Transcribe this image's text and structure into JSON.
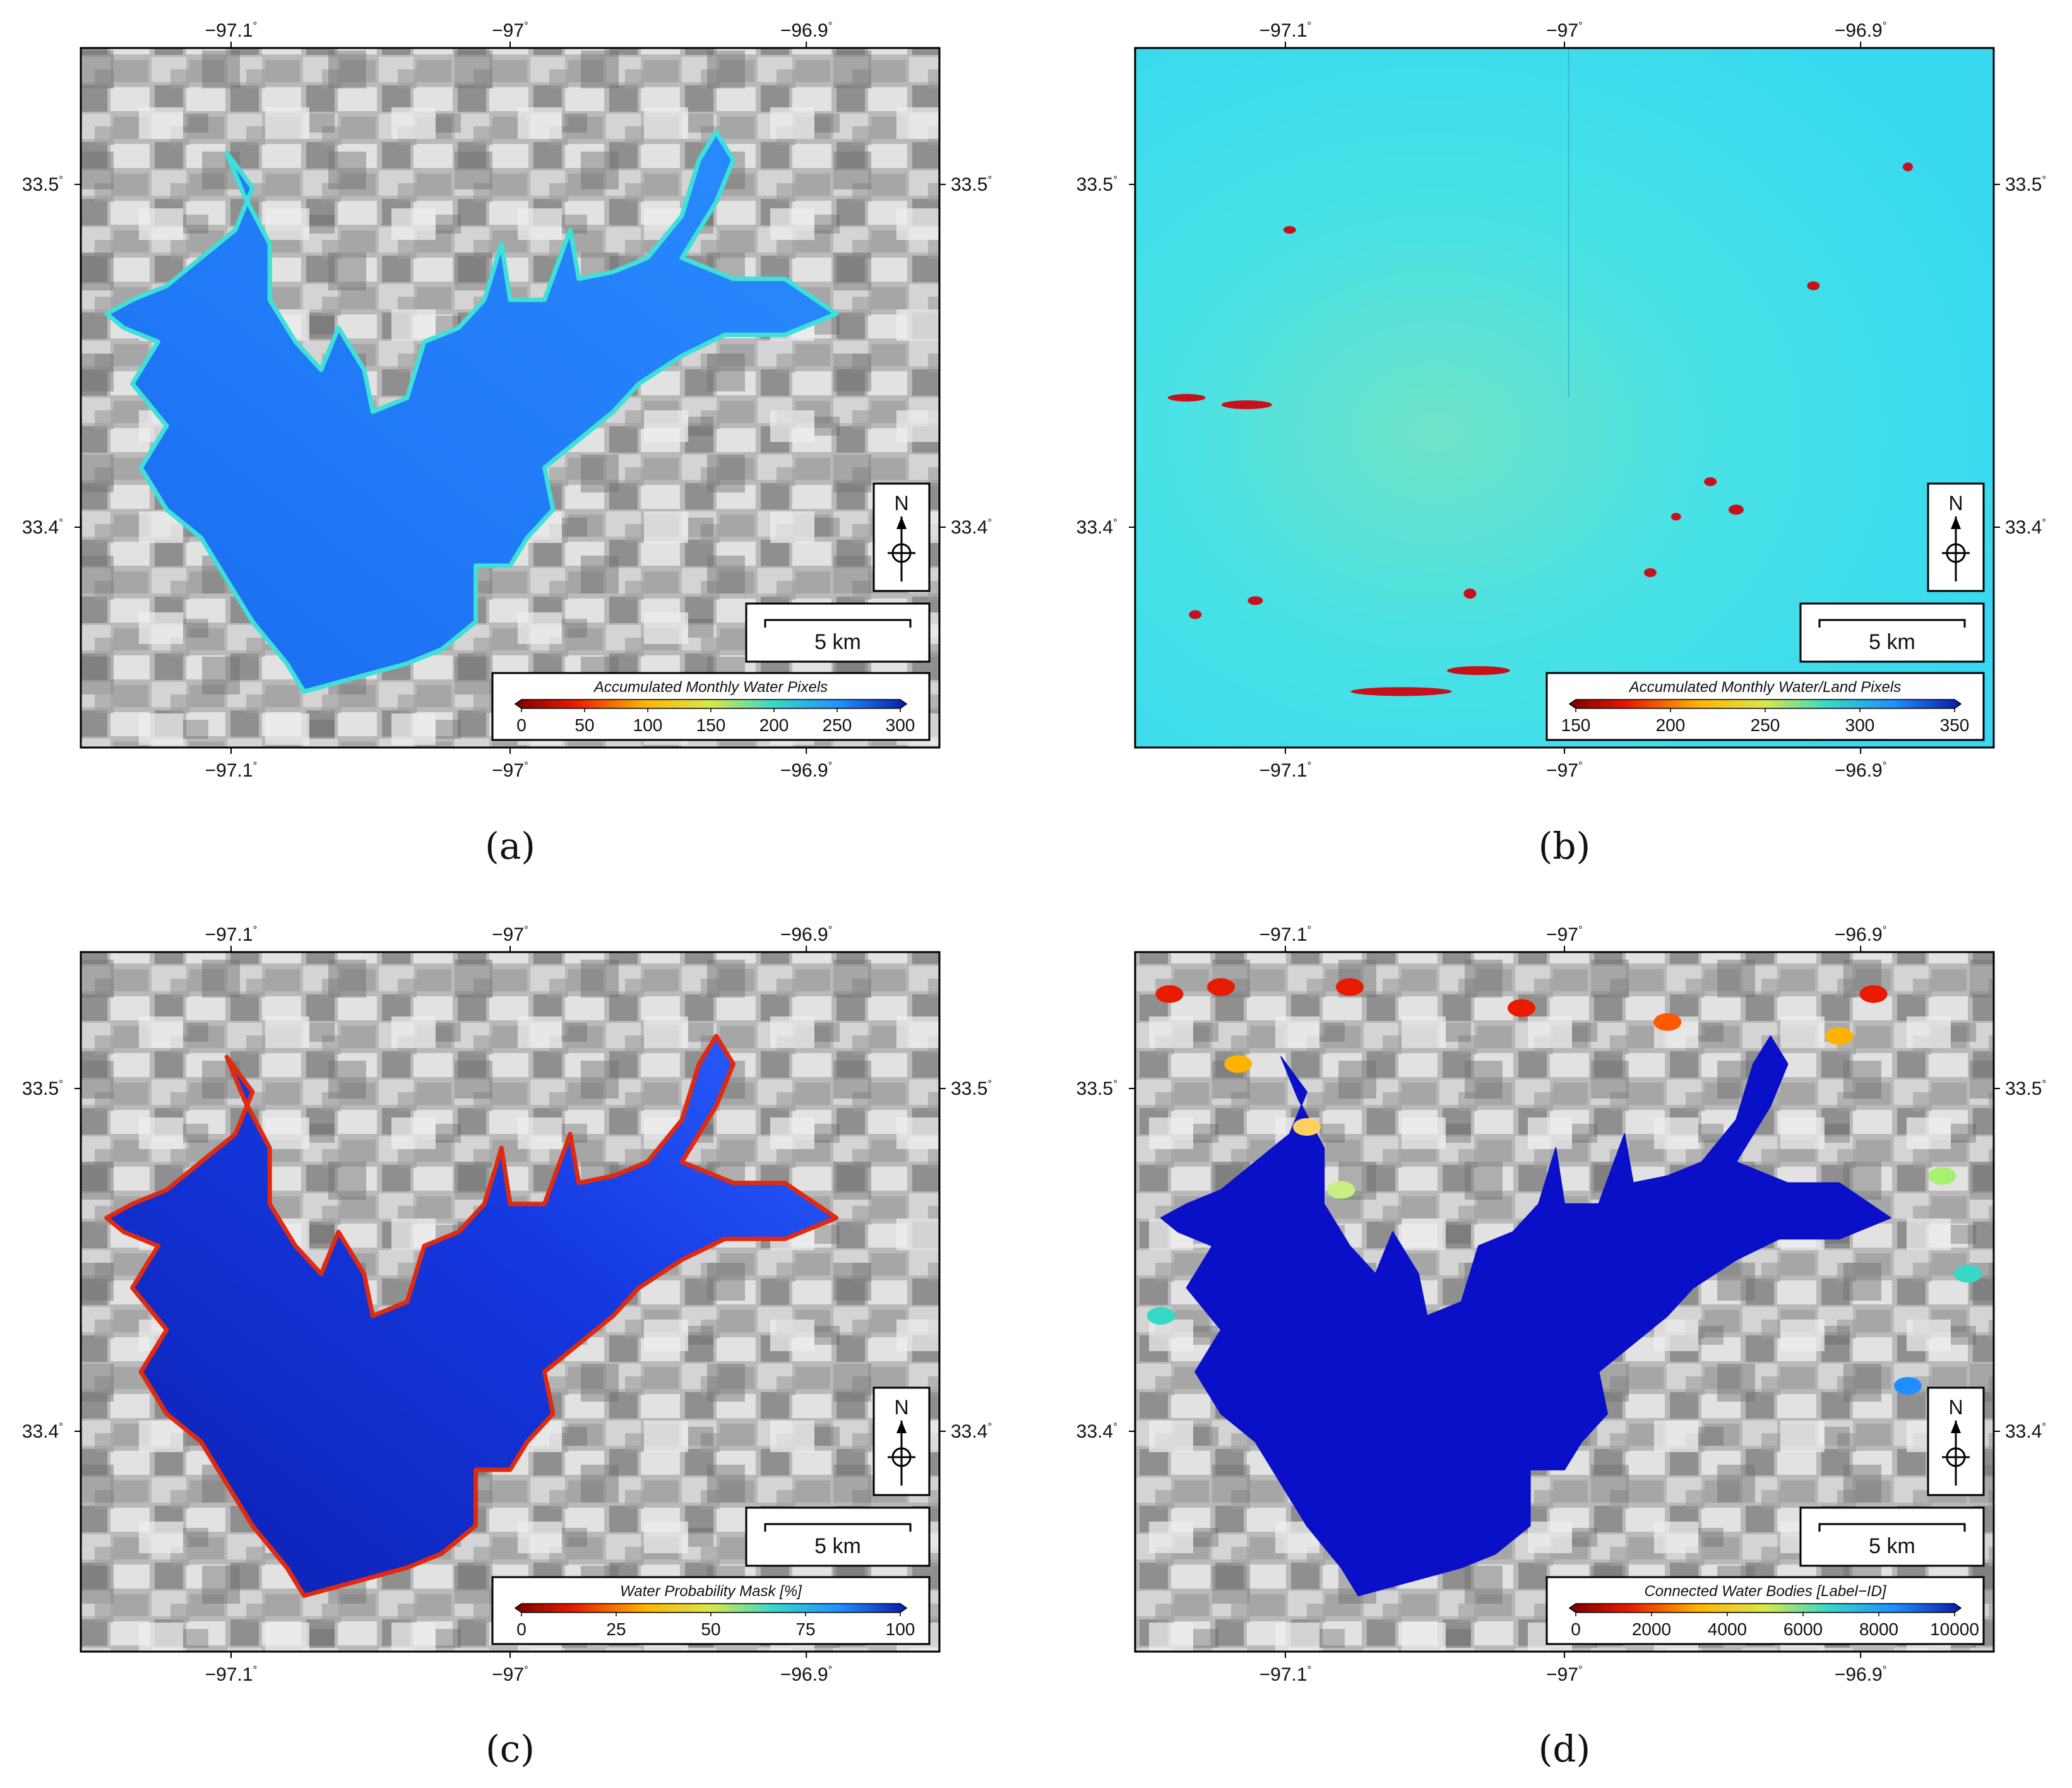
{
  "figure": {
    "panels": [
      {
        "id": "a",
        "label": "(a)",
        "map_type": "grayscale-background-with-water-overlay",
        "lon_labels": [
          "−97.1",
          "−97",
          "−96.9"
        ],
        "lat_labels": [
          "33.5",
          "33.4"
        ],
        "degree_symbol": "°",
        "north_label": "N",
        "scale_bar_label": "5 km",
        "colorbar": {
          "title": "Accumulated Monthly Water Pixels",
          "ticks": [
            "0",
            "50",
            "100",
            "150",
            "200",
            "250",
            "300"
          ],
          "colormap": "jet-reversed",
          "colors": [
            "#7a0000",
            "#e81a00",
            "#ffb300",
            "#d8e84a",
            "#35d9c8",
            "#1e8fff",
            "#0a1aa8"
          ]
        },
        "water_color": "#1e7af0",
        "fringe_color": "#3ee0d8"
      },
      {
        "id": "b",
        "label": "(b)",
        "map_type": "cyan-field",
        "lon_labels": [
          "−97.1",
          "−97",
          "−96.9"
        ],
        "lat_labels": [
          "33.5",
          "33.4"
        ],
        "degree_symbol": "°",
        "north_label": "N",
        "scale_bar_label": "5 km",
        "colorbar": {
          "title": "Accumulated Monthly Water/Land Pixels",
          "ticks": [
            "150",
            "200",
            "250",
            "300",
            "350"
          ],
          "colormap": "jet-reversed",
          "colors": [
            "#7a0000",
            "#e81a00",
            "#ffb300",
            "#d8e84a",
            "#35d9c8",
            "#1e8fff",
            "#0a1aa8"
          ]
        },
        "field_color": "#3ee0ec"
      },
      {
        "id": "c",
        "label": "(c)",
        "map_type": "grayscale-background-with-water-overlay",
        "lon_labels": [
          "−97.1",
          "−97",
          "−96.9"
        ],
        "lat_labels": [
          "33.5",
          "33.4"
        ],
        "degree_symbol": "°",
        "north_label": "N",
        "scale_bar_label": "5 km",
        "colorbar": {
          "title": "Water Probability Mask [%]",
          "ticks": [
            "0",
            "25",
            "50",
            "75",
            "100"
          ],
          "colormap": "jet-reversed",
          "colors": [
            "#7a0000",
            "#e81a00",
            "#ffb300",
            "#d8e84a",
            "#35d9c8",
            "#1e8fff",
            "#0a1aa8"
          ]
        },
        "water_color": "#1438e0",
        "fringe_color": "#e02a10"
      },
      {
        "id": "d",
        "label": "(d)",
        "map_type": "grayscale-background-with-water-overlay",
        "lon_labels": [
          "−97.1",
          "−97",
          "−96.9"
        ],
        "lat_labels": [
          "33.5",
          "33.4"
        ],
        "degree_symbol": "°",
        "north_label": "N",
        "scale_bar_label": "5 km",
        "colorbar": {
          "title": "Connected Water Bodies [Label−ID]",
          "ticks": [
            "0",
            "2000",
            "4000",
            "6000",
            "8000",
            "10000"
          ],
          "colormap": "jet-reversed",
          "colors": [
            "#7a0000",
            "#e81a00",
            "#ffb300",
            "#d8e84a",
            "#35d9c8",
            "#1e8fff",
            "#0a1aa8"
          ]
        },
        "water_color": "#0a0fc8",
        "fringe_color": "#0a0fc8"
      }
    ]
  }
}
